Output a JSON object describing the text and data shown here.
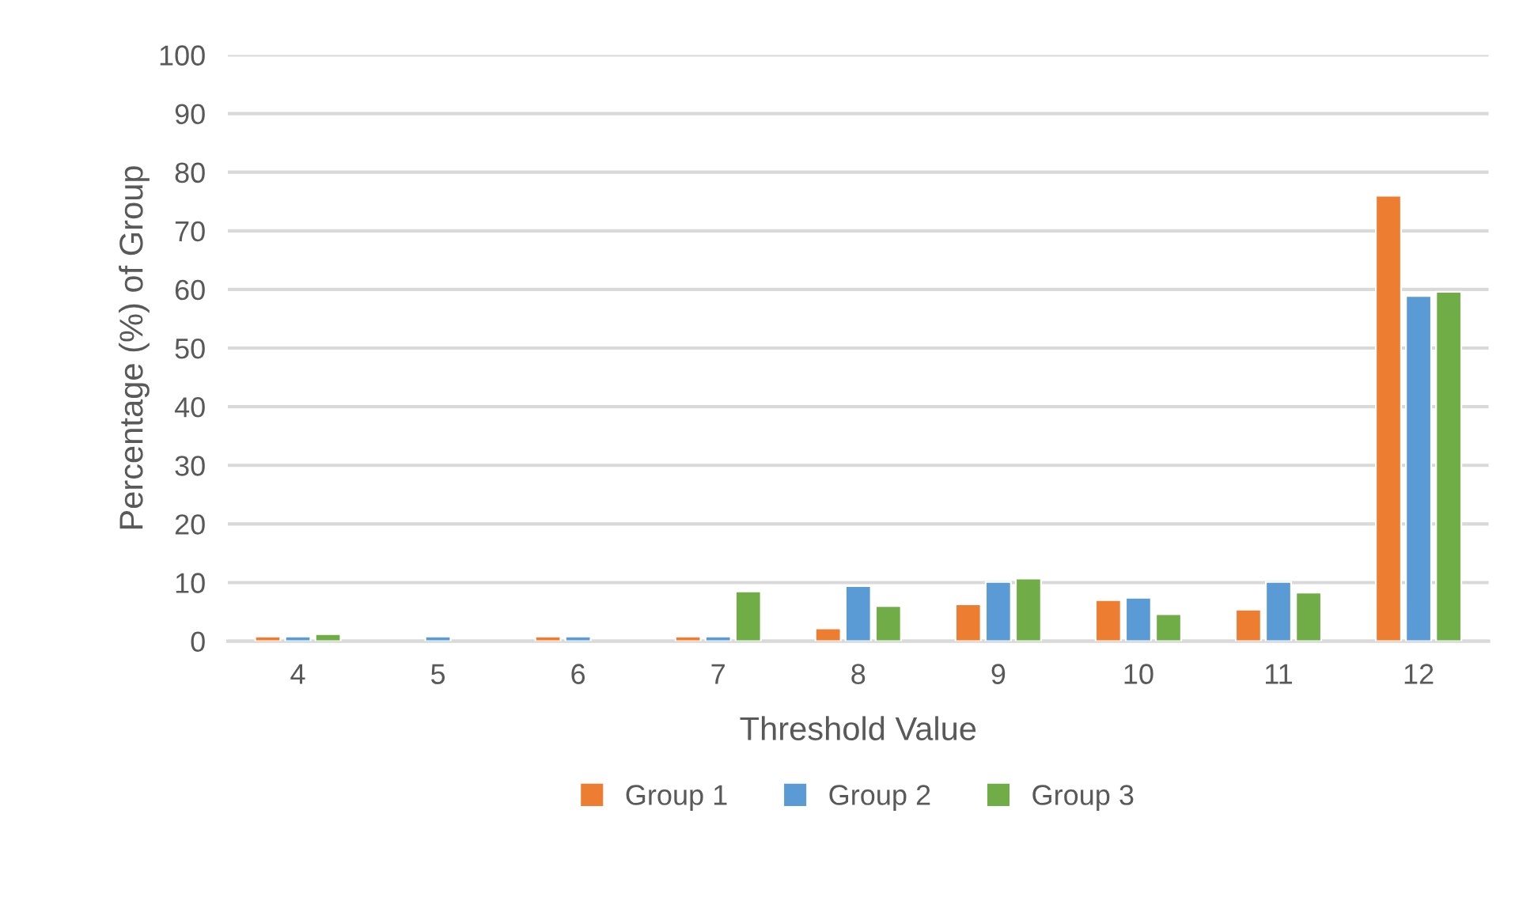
{
  "chart_data": {
    "type": "bar",
    "xlabel": "Threshold Value",
    "ylabel": "Percentage (%) of Group",
    "categories": [
      "4",
      "5",
      "6",
      "7",
      "8",
      "9",
      "10",
      "11",
      "12"
    ],
    "series": [
      {
        "name": "Group 1",
        "color": "#ed7d31",
        "values": [
          0.8,
          null,
          0.8,
          0.8,
          2.2,
          6.3,
          7.0,
          5.4,
          76.0
        ]
      },
      {
        "name": "Group 2",
        "color": "#5b9bd5",
        "values": [
          0.8,
          0.8,
          0.8,
          0.8,
          9.4,
          10.1,
          7.4,
          10.1,
          58.9
        ]
      },
      {
        "name": "Group 3",
        "color": "#70ad47",
        "values": [
          1.2,
          null,
          null,
          8.5,
          6.0,
          10.7,
          4.6,
          8.3,
          59.6
        ]
      }
    ],
    "ylim": [
      0,
      100
    ],
    "yticks": [
      0,
      10,
      20,
      30,
      40,
      50,
      60,
      70,
      80,
      90,
      100
    ],
    "grid": "y",
    "legend": "bottom"
  }
}
